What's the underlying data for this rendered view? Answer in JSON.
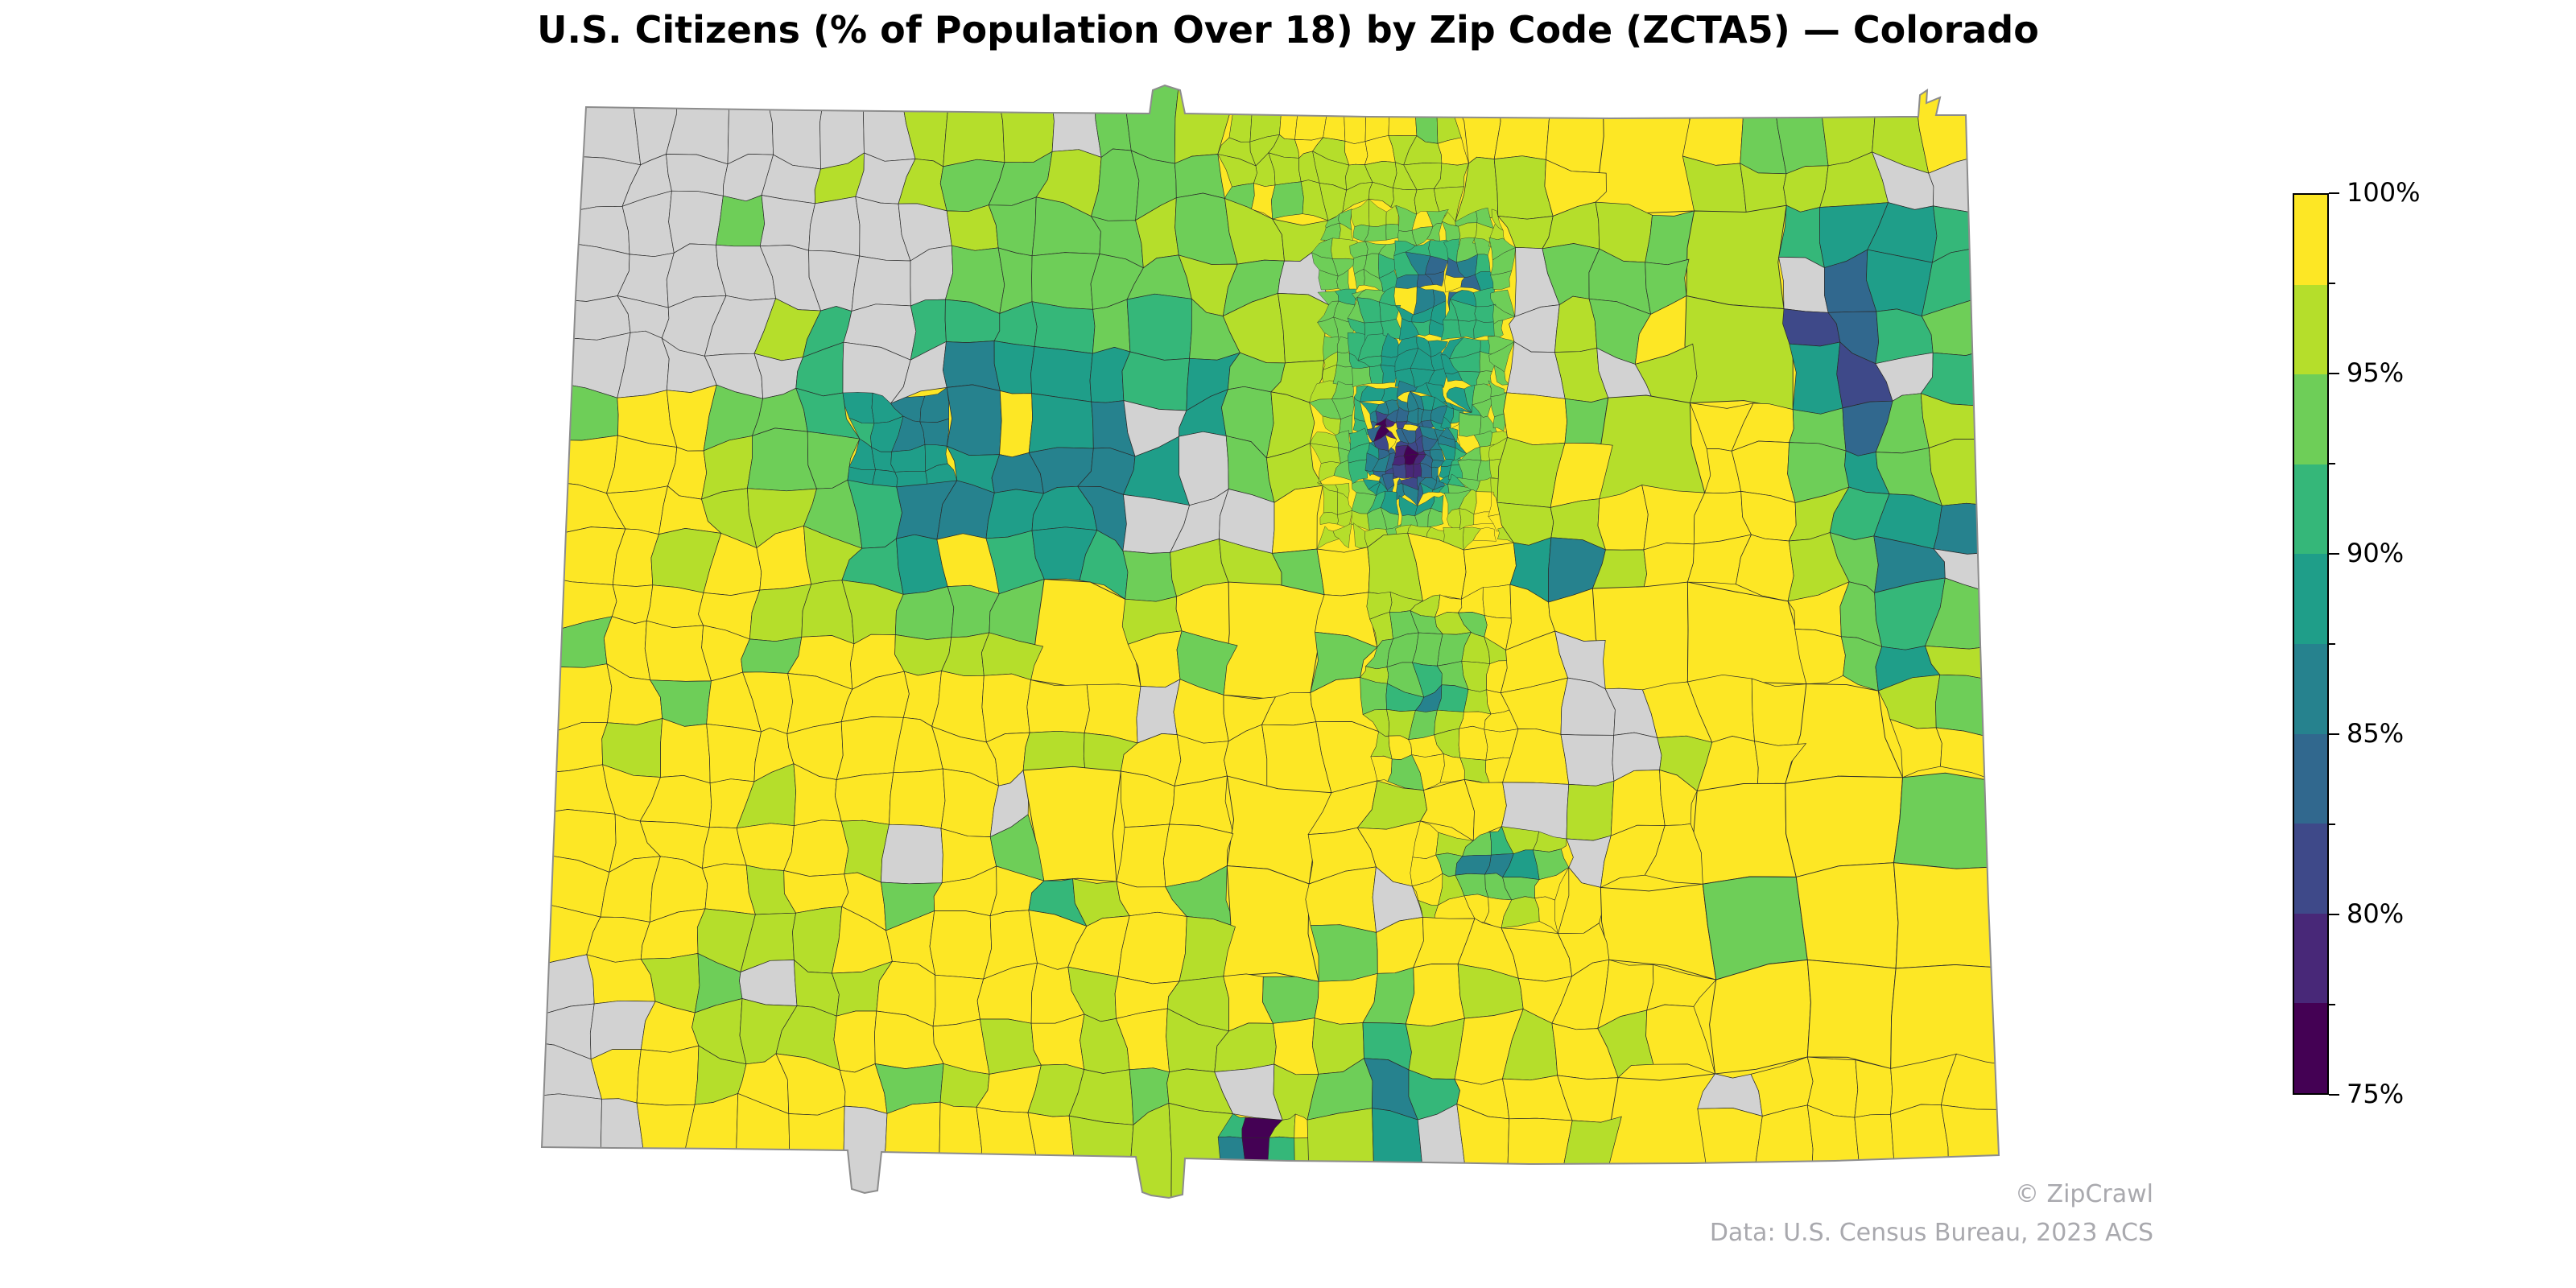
{
  "title": "U.S. Citizens (% of Population Over 18) by Zip Code (ZCTA5) — Colorado",
  "attribution": {
    "copyright": "© ZipCrawl",
    "source": "Data: U.S. Census Bureau, 2023 ACS"
  },
  "colorbar": {
    "tick_labels": [
      "100%",
      "95%",
      "90%",
      "85%",
      "80%",
      "75%"
    ],
    "tick_values_pct": [
      100,
      95,
      90,
      85,
      80,
      75
    ],
    "min_pct": 75,
    "max_pct": 100,
    "bin_size_pct": 2.5,
    "colors_top_to_bottom": [
      "#fde725",
      "#b5de2b",
      "#6ece58",
      "#35b779",
      "#1f9e89",
      "#26828e",
      "#31688e",
      "#3e4989",
      "#482878",
      "#440154"
    ],
    "no_data_color": "#d2d2d2"
  },
  "chart_data": {
    "type": "choropleth_map",
    "title": "U.S. Citizens (% of Population Over 18) by Zip Code (ZCTA5) — Colorado",
    "region": "Colorado, USA",
    "geography_unit": "Zip Code Tabulation Area (ZCTA5)",
    "metric": "U.S. citizens as percent of population over 18",
    "colormap": "viridis, discrete, 10 bins of 2.5% from 75% to 100%",
    "value_range_pct": [
      75,
      100
    ],
    "legend_position": "right vertical colorbar",
    "legend_ticks_pct": [
      100,
      95,
      90,
      85,
      80,
      75
    ],
    "color_bins": [
      {
        "range_pct": [
          97.5,
          100.0
        ],
        "color": "#fde725"
      },
      {
        "range_pct": [
          95.0,
          97.5
        ],
        "color": "#b5de2b"
      },
      {
        "range_pct": [
          92.5,
          95.0
        ],
        "color": "#6ece58"
      },
      {
        "range_pct": [
          90.0,
          92.5
        ],
        "color": "#35b779"
      },
      {
        "range_pct": [
          87.5,
          90.0
        ],
        "color": "#1f9e89"
      },
      {
        "range_pct": [
          85.0,
          87.5
        ],
        "color": "#26828e"
      },
      {
        "range_pct": [
          82.5,
          85.0
        ],
        "color": "#31688e"
      },
      {
        "range_pct": [
          80.0,
          82.5
        ],
        "color": "#3e4989"
      },
      {
        "range_pct": [
          77.5,
          80.0
        ],
        "color": "#482878"
      },
      {
        "range_pct": [
          75.0,
          77.5
        ],
        "color": "#440154"
      },
      {
        "range_pct": null,
        "color": "#d2d2d2",
        "meaning": "no data"
      }
    ],
    "regional_readings": [
      {
        "area": "Eastern plains and most rural ZCTAs statewide",
        "value_pct": "97.5–100"
      },
      {
        "area": "North-central belt and northeast quadrant",
        "value_pct": "92.5–97.5 mixed with 97.5–100"
      },
      {
        "area": "Central-west mountain corridor",
        "value_pct": "85–90"
      },
      {
        "area": "Denver metro: dense cluster of small ZCTAs",
        "value_pct": "mixed 75–95"
      },
      {
        "area": "Central Denver darkest ZCTAs",
        "value_pct": "75–77.5"
      },
      {
        "area": "Blob just north of Denver metro",
        "value_pct": "82.5–85"
      },
      {
        "area": "Tall strip in northeastern plains near east border",
        "value_pct": "80–82.5"
      },
      {
        "area": "Patch at east border, center-south latitude",
        "value_pct": "80–82.5"
      },
      {
        "area": "Teal patches near southern border and south-central towns",
        "value_pct": "85–87.5"
      },
      {
        "area": "Tiny ZCTA on the southern border left of center",
        "value_pct": "75–77.5"
      },
      {
        "area": "Northwest corner block and scattered polygons",
        "value_pct": "no data (gray)"
      }
    ]
  },
  "map_render": {
    "corners": {
      "nw": [
        728,
        133
      ],
      "ne": [
        2442,
        143
      ],
      "se": [
        2483,
        1435
      ],
      "sw": [
        673,
        1425
      ]
    },
    "grid": [
      30,
      22
    ],
    "base_value": 99.2,
    "outline": [
      [
        728,
        133
      ],
      [
        1000,
        137
      ],
      [
        1300,
        140
      ],
      [
        1428,
        141
      ],
      [
        1432,
        112
      ],
      [
        1447,
        106
      ],
      [
        1466,
        112
      ],
      [
        1472,
        141
      ],
      [
        1700,
        145
      ],
      [
        2000,
        147
      ],
      [
        2250,
        146
      ],
      [
        2360,
        145
      ],
      [
        2383,
        145
      ],
      [
        2385,
        118
      ],
      [
        2394,
        112
      ],
      [
        2393,
        128
      ],
      [
        2410,
        121
      ],
      [
        2405,
        143
      ],
      [
        2442,
        143
      ],
      [
        2450,
        430
      ],
      [
        2460,
        800
      ],
      [
        2470,
        1120
      ],
      [
        2483,
        1435
      ],
      [
        2280,
        1442
      ],
      [
        2100,
        1445
      ],
      [
        1900,
        1446
      ],
      [
        1700,
        1443
      ],
      [
        1600,
        1442
      ],
      [
        1472,
        1439
      ],
      [
        1469,
        1484
      ],
      [
        1452,
        1488
      ],
      [
        1430,
        1485
      ],
      [
        1419,
        1481
      ],
      [
        1411,
        1437
      ],
      [
        1250,
        1434
      ],
      [
        1095,
        1431
      ],
      [
        1090,
        1479
      ],
      [
        1074,
        1482
      ],
      [
        1058,
        1477
      ],
      [
        1053,
        1429
      ],
      [
        900,
        1427
      ],
      [
        760,
        1426
      ],
      [
        673,
        1425
      ],
      [
        688,
        1040
      ],
      [
        703,
        660
      ],
      [
        715,
        370
      ]
    ],
    "hotspots": [
      [
        0.4,
        0.07,
        0.2,
        0.1,
        95.6
      ],
      [
        0.77,
        0.17,
        0.14,
        0.12,
        94.8
      ],
      [
        0.33,
        0.3,
        0.17,
        0.17,
        93.4
      ],
      [
        0.94,
        0.4,
        0.05,
        0.12,
        92.5
      ],
      [
        0.43,
        0.93,
        0.15,
        0.08,
        95.2
      ],
      [
        0.14,
        0.82,
        0.07,
        0.09,
        95.4
      ],
      [
        0.6,
        0.53,
        0.05,
        0.06,
        93.8
      ],
      [
        0.52,
        0.16,
        0.05,
        0.07,
        94.8
      ],
      [
        0.285,
        0.31,
        0.105,
        0.12,
        87.0
      ],
      [
        0.38,
        0.345,
        0.055,
        0.085,
        86.6
      ],
      [
        0.225,
        0.235,
        0.05,
        0.045,
        87.6
      ],
      [
        0.445,
        0.27,
        0.04,
        0.055,
        88.5
      ],
      [
        0.27,
        0.42,
        0.05,
        0.06,
        88.0
      ],
      [
        0.95,
        0.14,
        0.05,
        0.08,
        88.0
      ],
      [
        0.955,
        0.255,
        0.035,
        0.03,
        87.2
      ],
      [
        0.95,
        0.51,
        0.03,
        0.03,
        87.0
      ],
      [
        0.705,
        0.425,
        0.04,
        0.028,
        86.8
      ],
      [
        0.655,
        0.715,
        0.032,
        0.028,
        87.0
      ],
      [
        0.36,
        0.73,
        0.022,
        0.034,
        87.0
      ],
      [
        0.592,
        0.945,
        0.032,
        0.062,
        86.6
      ],
      [
        0.605,
        0.24,
        0.055,
        0.12,
        89.3
      ],
      [
        0.61,
        0.553,
        0.014,
        0.014,
        86.5,
        1.8
      ],
      [
        0.918,
        0.27,
        0.018,
        0.09,
        84.2
      ],
      [
        0.897,
        0.195,
        0.032,
        0.075,
        81.2,
        1.3
      ],
      [
        0.978,
        0.418,
        0.035,
        0.035,
        81.0,
        1.3
      ],
      [
        0.621,
        0.157,
        0.026,
        0.022,
        83.4,
        1.4
      ],
      [
        0.594,
        0.325,
        0.03,
        0.055,
        84.0,
        1.3
      ],
      [
        0.578,
        0.3,
        0.008,
        0.014,
        77.0,
        1.2
      ],
      [
        0.597,
        0.329,
        0.009,
        0.016,
        76.2,
        1.2
      ],
      [
        0.49,
        0.985,
        0.012,
        0.02,
        75.8,
        2.5
      ]
    ],
    "gray_zones": [
      [
        0.0,
        0.0,
        0.25,
        0.27,
        0.72
      ],
      [
        0.0,
        0.0,
        0.115,
        0.27,
        0.92
      ],
      [
        0.385,
        0.255,
        0.452,
        0.4,
        0.85
      ],
      [
        0.495,
        0.14,
        0.535,
        0.2,
        0.85
      ],
      [
        0.48,
        0.385,
        0.515,
        0.43,
        0.8
      ],
      [
        0.655,
        0.115,
        0.715,
        0.27,
        0.75
      ],
      [
        0.69,
        0.51,
        0.775,
        0.635,
        0.9
      ],
      [
        0.585,
        0.6,
        0.615,
        0.655,
        0.85
      ],
      [
        0.0,
        0.83,
        0.055,
        0.985,
        0.8
      ],
      [
        0.595,
        0.935,
        0.648,
        0.995,
        0.85
      ],
      [
        0.945,
        0.055,
        0.985,
        0.1,
        0.9
      ],
      [
        0.3,
        0.595,
        0.345,
        0.66,
        0.7
      ],
      [
        0.285,
        0.075,
        0.33,
        0.16,
        0.6
      ]
    ],
    "gray_random_prob": 0.025,
    "detail_zones": [
      [
        0.555,
        0.27,
        0.64,
        0.375,
        5
      ],
      [
        0.53,
        0.1,
        0.67,
        0.43,
        3
      ],
      [
        0.47,
        0.02,
        0.62,
        0.11,
        2
      ],
      [
        0.56,
        0.46,
        0.66,
        0.62,
        2
      ],
      [
        0.61,
        0.66,
        0.7,
        0.76,
        2
      ],
      [
        0.21,
        0.28,
        0.28,
        0.36,
        2
      ],
      [
        0.455,
        0.94,
        0.525,
        1.0,
        2
      ]
    ],
    "coarse_zones": [
      [
        0.74,
        0.03,
        0.862,
        0.97
      ],
      [
        0.862,
        0.55,
        1.0,
        0.97
      ],
      [
        0.36,
        0.44,
        0.56,
        0.78
      ]
    ],
    "stroke_color": "#2a2a2a",
    "outline_color": "#8c8c8c"
  }
}
